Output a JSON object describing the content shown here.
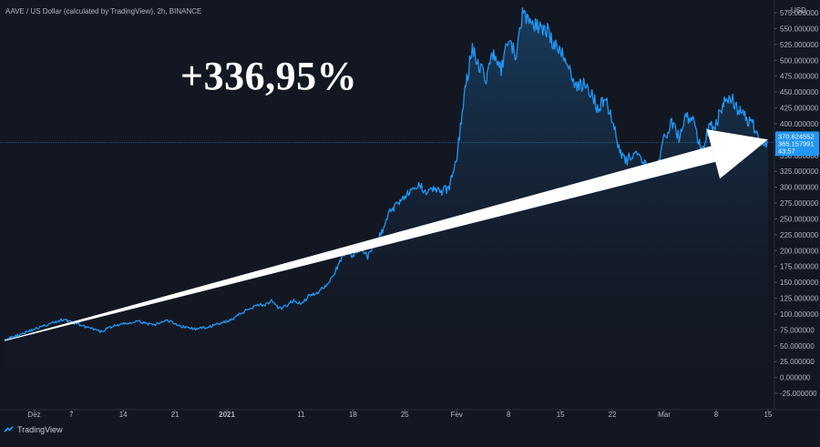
{
  "header": {
    "symbol": "AAVE / US Dollar (calculated by TradingView), 2h, BINANCE"
  },
  "annotation": {
    "text": "+336,95%"
  },
  "brand": {
    "label": "TradingView"
  },
  "colors": {
    "background": "#131722",
    "line": "#2196f3",
    "arrow": "#ffffff",
    "axis_text": "#b2b5be",
    "badge": "#2196f3"
  },
  "chart_data": {
    "type": "line",
    "currency": "USD",
    "ylim": [
      -25,
      575
    ],
    "y_ticks": [
      "575.000000",
      "550.000000",
      "525.000000",
      "500.000000",
      "475.000000",
      "450.000000",
      "425.000000",
      "400.000000",
      "375.000000",
      "350.000000",
      "325.000000",
      "300.000000",
      "275.000000",
      "250.000000",
      "225.000000",
      "200.000000",
      "175.000000",
      "150.000000",
      "125.000000",
      "100.000000",
      "75.000000",
      "50.000000",
      "25.000000",
      "0.000000",
      "-25.000000"
    ],
    "x_ticks": [
      {
        "label": "Dez",
        "day": 0
      },
      {
        "label": "7",
        "day": 5
      },
      {
        "label": "14",
        "day": 12
      },
      {
        "label": "21",
        "day": 19
      },
      {
        "label": "2021",
        "day": 26
      },
      {
        "label": "11",
        "day": 36
      },
      {
        "label": "18",
        "day": 43
      },
      {
        "label": "25",
        "day": 50
      },
      {
        "label": "Fev",
        "day": 57
      },
      {
        "label": "8",
        "day": 64
      },
      {
        "label": "15",
        "day": 71
      },
      {
        "label": "22",
        "day": 78
      },
      {
        "label": "Mar",
        "day": 85
      },
      {
        "label": "8",
        "day": 92
      },
      {
        "label": "15",
        "day": 99
      }
    ],
    "xlim": [
      -4,
      99.5
    ],
    "series": [
      {
        "points": [
          [
            -4,
            61
          ],
          [
            -3,
            63
          ],
          [
            -2,
            68
          ],
          [
            -1,
            72
          ],
          [
            0,
            76
          ],
          [
            1,
            80
          ],
          [
            2,
            84
          ],
          [
            3,
            88
          ],
          [
            4,
            92
          ],
          [
            5,
            87
          ],
          [
            6,
            84
          ],
          [
            7,
            79
          ],
          [
            8,
            76
          ],
          [
            9,
            72
          ],
          [
            10,
            78
          ],
          [
            11,
            82
          ],
          [
            12,
            84
          ],
          [
            13,
            86
          ],
          [
            14,
            88
          ],
          [
            15,
            86
          ],
          [
            16,
            82
          ],
          [
            17,
            86
          ],
          [
            18,
            90
          ],
          [
            19,
            85
          ],
          [
            20,
            80
          ],
          [
            21,
            78
          ],
          [
            22,
            76
          ],
          [
            23,
            79
          ],
          [
            24,
            81
          ],
          [
            25,
            85
          ],
          [
            26,
            88
          ],
          [
            27,
            94
          ],
          [
            28,
            102
          ],
          [
            29,
            108
          ],
          [
            30,
            115
          ],
          [
            31,
            114
          ],
          [
            32,
            120
          ],
          [
            33,
            108
          ],
          [
            34,
            112
          ],
          [
            35,
            122
          ],
          [
            36,
            115
          ],
          [
            37,
            128
          ],
          [
            38,
            132
          ],
          [
            39,
            142
          ],
          [
            40,
            155
          ],
          [
            41,
            175
          ],
          [
            42,
            198
          ],
          [
            43,
            193
          ],
          [
            44,
            205
          ],
          [
            45,
            190
          ],
          [
            46,
            212
          ],
          [
            47,
            232
          ],
          [
            48,
            262
          ],
          [
            49,
            274
          ],
          [
            50,
            288
          ],
          [
            51,
            292
          ],
          [
            52,
            302
          ],
          [
            53,
            294
          ],
          [
            54,
            298
          ],
          [
            55,
            292
          ],
          [
            56,
            300
          ],
          [
            57,
            348
          ],
          [
            58,
            440
          ],
          [
            59,
            518
          ],
          [
            60,
            492
          ],
          [
            61,
            473
          ],
          [
            62,
            514
          ],
          [
            63,
            482
          ],
          [
            64,
            532
          ],
          [
            65,
            506
          ],
          [
            66,
            578
          ],
          [
            67,
            560
          ],
          [
            68,
            552
          ],
          [
            69,
            554
          ],
          [
            70,
            526
          ],
          [
            71,
            512
          ],
          [
            72,
            498
          ],
          [
            73,
            458
          ],
          [
            74,
            462
          ],
          [
            75,
            452
          ],
          [
            76,
            425
          ],
          [
            77,
            440
          ],
          [
            78,
            410
          ],
          [
            79,
            358
          ],
          [
            80,
            342
          ],
          [
            81,
            356
          ],
          [
            82,
            338
          ],
          [
            83,
            332
          ],
          [
            84,
            322
          ],
          [
            85,
            376
          ],
          [
            86,
            402
          ],
          [
            87,
            378
          ],
          [
            88,
            410
          ],
          [
            89,
            402
          ],
          [
            90,
            356
          ],
          [
            91,
            394
          ],
          [
            92,
            398
          ],
          [
            93,
            434
          ],
          [
            94,
            442
          ],
          [
            95,
            421
          ],
          [
            96,
            410
          ],
          [
            97,
            398
          ],
          [
            98,
            374
          ],
          [
            99,
            370
          ]
        ]
      }
    ],
    "last_price": "370.624552",
    "last_price_value": 370.624552,
    "secondary_price": "365.157991",
    "countdown": "43:57",
    "annotation_arrow": {
      "from": [
        -4,
        58
      ],
      "to": [
        99,
        375
      ]
    }
  }
}
